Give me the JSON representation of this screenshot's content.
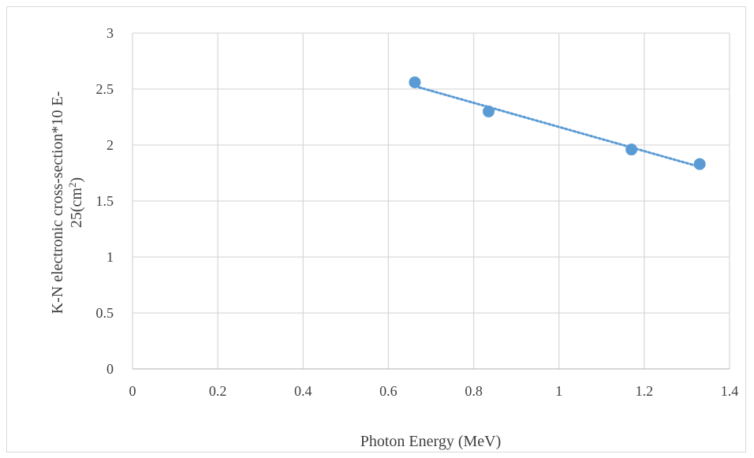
{
  "chart_data": {
    "type": "scatter",
    "title": "",
    "xlabel": "Photon Energy (MeV)",
    "ylabel": {
      "line1": "K-N electronic cross-section*10 E-",
      "line2_base": "25(cm",
      "line2_sup": "2",
      "line2_end": ")"
    },
    "xlim": [
      0,
      1.4
    ],
    "ylim": [
      0,
      3
    ],
    "x_ticks": [
      "0",
      "0.2",
      "0.4",
      "0.6",
      "0.8",
      "1",
      "1.2",
      "1.4"
    ],
    "y_ticks": [
      "0",
      "0.5",
      "1",
      "1.5",
      "2",
      "2.5",
      "3"
    ],
    "x_tick_values": [
      0,
      0.2,
      0.4,
      0.6,
      0.8,
      1.0,
      1.2,
      1.4
    ],
    "y_tick_values": [
      0,
      0.5,
      1.0,
      1.5,
      2.0,
      2.5,
      3.0
    ],
    "grid": true,
    "legend": "none",
    "series": [
      {
        "x": [
          0.662,
          0.835,
          1.17,
          1.33
        ],
        "y": [
          2.56,
          2.3,
          1.96,
          1.83
        ],
        "color": "#5b9bd5",
        "marker": "circle",
        "trendline": "linear dotted"
      }
    ],
    "colors": {
      "grid": "#d9d9d9",
      "axis": "#bfbfbf",
      "text": "#404040",
      "marker": "#5b9bd5"
    }
  }
}
